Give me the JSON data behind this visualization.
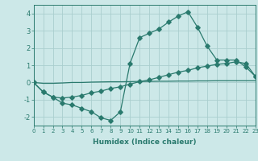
{
  "line1": {
    "x": [
      0,
      1,
      2,
      3,
      4,
      5,
      6,
      7,
      8,
      9,
      10,
      11,
      12,
      13,
      14,
      15,
      16,
      17,
      18,
      19,
      20,
      21,
      22,
      23
    ],
    "y": [
      0.0,
      -0.55,
      -0.85,
      -1.2,
      -1.3,
      -1.5,
      -1.7,
      -2.05,
      -2.2,
      -1.7,
      1.1,
      2.6,
      2.85,
      3.1,
      3.5,
      3.85,
      4.1,
      3.2,
      2.1,
      1.3,
      1.3,
      1.3,
      0.9,
      0.35
    ]
  },
  "line2": {
    "x": [
      0,
      1,
      2,
      3,
      4,
      5,
      6,
      7,
      8,
      9,
      10,
      11,
      12,
      13,
      14,
      15,
      16,
      17,
      18,
      19,
      20,
      21,
      22,
      23
    ],
    "y": [
      0.0,
      -0.55,
      -0.85,
      -0.9,
      -0.85,
      -0.75,
      -0.6,
      -0.5,
      -0.35,
      -0.25,
      -0.1,
      0.05,
      0.15,
      0.3,
      0.45,
      0.6,
      0.7,
      0.85,
      0.95,
      1.05,
      1.1,
      1.2,
      1.1,
      0.35
    ]
  },
  "line3": {
    "x": [
      0,
      1,
      2,
      3,
      4,
      5,
      6,
      7,
      8,
      9,
      10,
      11,
      12,
      13,
      14,
      15,
      16,
      17,
      18,
      19,
      20,
      21,
      22,
      23
    ],
    "y": [
      0.0,
      -0.05,
      -0.05,
      -0.03,
      0.0,
      0.0,
      0.02,
      0.03,
      0.04,
      0.04,
      0.05,
      0.06,
      0.06,
      0.07,
      0.07,
      0.08,
      0.08,
      0.09,
      0.09,
      0.1,
      0.1,
      0.1,
      0.1,
      0.1
    ]
  },
  "color": "#2a7a6e",
  "bg_color": "#cce8e8",
  "grid_major_color": "#aacece",
  "grid_minor_color": "#bcd8d8",
  "xlabel": "Humidex (Indice chaleur)",
  "xlim": [
    0,
    23
  ],
  "ylim": [
    -2.5,
    4.5
  ],
  "yticks": [
    -2,
    -1,
    0,
    1,
    2,
    3,
    4
  ],
  "xticks": [
    0,
    1,
    2,
    3,
    4,
    5,
    6,
    7,
    8,
    9,
    10,
    11,
    12,
    13,
    14,
    15,
    16,
    17,
    18,
    19,
    20,
    21,
    22,
    23
  ],
  "markersize": 2.8,
  "linewidth": 0.9
}
